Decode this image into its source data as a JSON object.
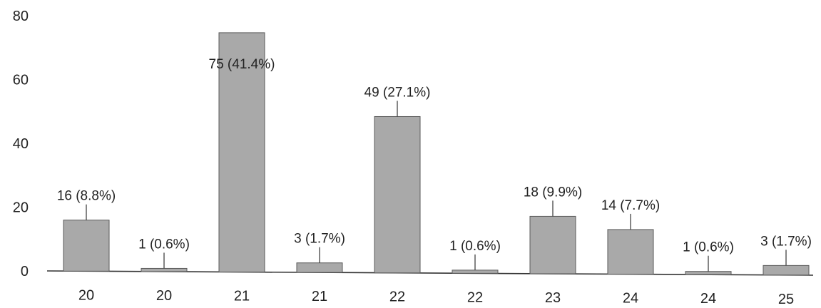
{
  "chart_data": {
    "type": "bar",
    "categories": [
      "20",
      "20",
      "21",
      "21",
      "22",
      "22",
      "23",
      "24",
      "24",
      "25"
    ],
    "values": [
      16,
      1,
      75,
      3,
      49,
      1,
      18,
      14,
      1,
      3
    ],
    "data_labels": [
      "16 (8.8%)",
      "1 (0.6%)",
      "75 (41.4%)",
      "3 (1.7%)",
      "49 (27.1%)",
      "1 (0.6%)",
      "18 (9.9%)",
      "14 (7.7%)",
      "1 (0.6%)",
      "3 (1.7%)"
    ],
    "yticks": [
      "0",
      "20",
      "40",
      "60",
      "80"
    ],
    "ylim": [
      0,
      80
    ],
    "grid": false,
    "legend": "none",
    "bar_color": "#a9a9a9"
  }
}
